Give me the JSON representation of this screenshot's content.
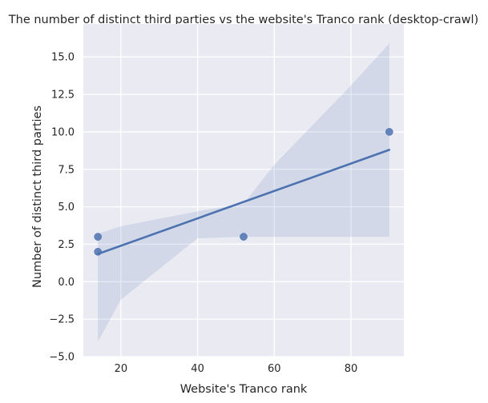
{
  "chart_data": {
    "type": "scatter",
    "title": "The number of distinct third parties vs the website's Tranco rank (desktop-crawl)",
    "xlabel": "Website's Tranco rank",
    "ylabel": "Number of distinct third parties",
    "xlim": [
      10.2,
      93.8
    ],
    "ylim": [
      -5.0,
      17.2
    ],
    "xticks": [
      20,
      40,
      60,
      80
    ],
    "yticks": [
      -5.0,
      -2.5,
      0.0,
      2.5,
      5.0,
      7.5,
      10.0,
      12.5,
      15.0
    ],
    "xtick_labels": [
      "20",
      "40",
      "60",
      "80"
    ],
    "ytick_labels": [
      "−5.0",
      "−2.5",
      "0.0",
      "2.5",
      "5.0",
      "7.5",
      "10.0",
      "12.5",
      "15.0"
    ],
    "grid": true,
    "background": "#eaeaf2",
    "grid_color": "#ffffff",
    "point_color": "#4c72b0",
    "line_color": "#4c72b0",
    "band_color": "#4c72b0",
    "points": [
      {
        "x": 14,
        "y": 3
      },
      {
        "x": 14,
        "y": 2
      },
      {
        "x": 52,
        "y": 3
      },
      {
        "x": 90,
        "y": 10
      }
    ],
    "regression_line": {
      "x": [
        14,
        90
      ],
      "y": [
        1.85,
        8.8
      ]
    },
    "confidence_band": {
      "x": [
        14,
        20,
        40,
        52,
        60,
        80,
        90
      ],
      "upper": [
        3.2,
        3.7,
        4.7,
        5.2,
        7.8,
        13.1,
        15.9
      ],
      "lower": [
        -4.0,
        -1.2,
        2.9,
        3.0,
        3.0,
        3.0,
        3.0
      ]
    }
  }
}
